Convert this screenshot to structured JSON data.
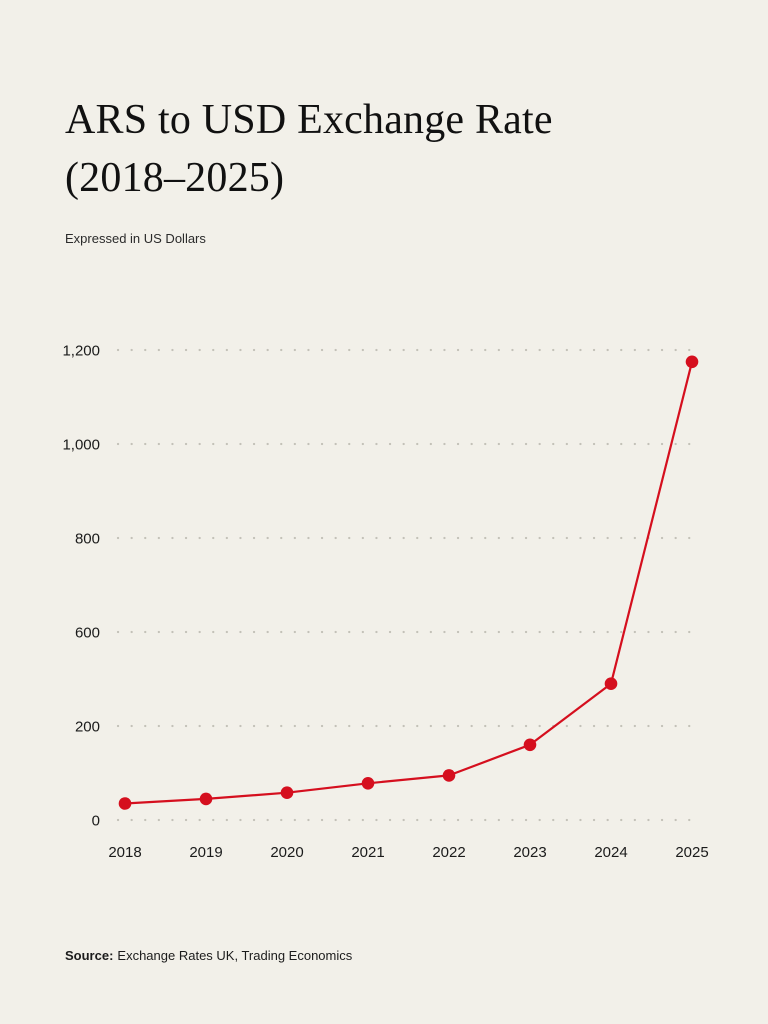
{
  "page": {
    "title": "ARS to USD Exchange Rate (2018–2025)",
    "subtitle": "Expressed in US Dollars"
  },
  "footer": {
    "source_label": "Source:",
    "source_text": "Exchange Rates UK, Trading Economics"
  },
  "chart_data": {
    "type": "line",
    "title": "ARS to USD Exchange Rate (2018–2025)",
    "subtitle": "Expressed in US Dollars",
    "x": [
      "2018",
      "2019",
      "2020",
      "2021",
      "2022",
      "2023",
      "2024",
      "2025"
    ],
    "series": [
      {
        "name": "ARS to USD exchange rate",
        "values": [
          35,
          45,
          58,
          78,
          95,
          160,
          380,
          1175
        ]
      }
    ],
    "y_axis_ticks": [
      {
        "label": "0",
        "value": 0
      },
      {
        "label": "200",
        "value": 200
      },
      {
        "label": "600",
        "value": 600
      },
      {
        "label": "800",
        "value": 800
      },
      {
        "label": "1,000",
        "value": 1000
      },
      {
        "label": "1,200",
        "value": 1200
      }
    ],
    "ylim": [
      0,
      1200
    ],
    "grid": "dotted-horizontal",
    "legend": "none",
    "line_color": "#d50f1e",
    "marker_color": "#d50f1e",
    "grid_color": "#c3c1b8",
    "background_color": "#f2f0e9"
  }
}
